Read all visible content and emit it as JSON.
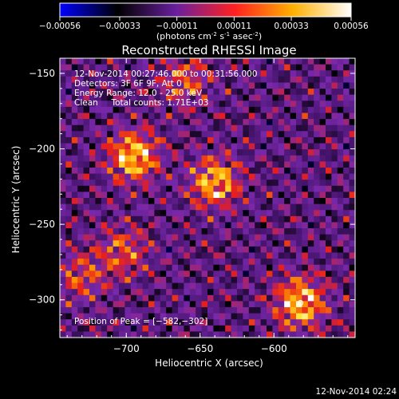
{
  "chart_data": {
    "type": "heatmap",
    "title": "Reconstructed RHESSI Image",
    "colorbar": {
      "ticks": [
        "-0.00056",
        "-0.00033",
        "-0.00011",
        "0.00011",
        "0.00033",
        "0.00056"
      ],
      "label_main": "(photons cm",
      "label_sup1": "-2",
      "label_mid1": " s",
      "label_sup2": "-1",
      "label_mid2": " asec",
      "label_sup3": "-2",
      "label_end": ")",
      "range": [
        -0.00056,
        0.00056
      ],
      "colors": [
        "#0000ff",
        "#000000",
        "#6a1f9e",
        "#ff2020",
        "#ffb000",
        "#ffffff"
      ]
    },
    "xlabel": "Heliocentric X (arcsec)",
    "ylabel": "Heliocentric Y (arcsec)",
    "xlim": [
      -745,
      -545
    ],
    "ylim": [
      -325,
      -140
    ],
    "xticks": [
      {
        "value": -700,
        "label": "−700"
      },
      {
        "value": -650,
        "label": "−650"
      },
      {
        "value": -600,
        "label": "−600"
      }
    ],
    "yticks": [
      {
        "value": -150,
        "label": "−150"
      },
      {
        "value": -200,
        "label": "−200"
      },
      {
        "value": -250,
        "label": "−250"
      },
      {
        "value": -300,
        "label": "−300"
      }
    ],
    "annotations": [
      "12-Nov-2014 00:27:46.000 to 00:31:56.000",
      "Detectors: 3F 6F 9F, Att 0",
      "Energy Range: 12.0 - 25.0 keV",
      "Clean     Total counts: 1.71E+03"
    ],
    "peak_text": "Position of Peak = [−582,−302]",
    "peak": [
      -582,
      -302
    ],
    "bright_sources": [
      {
        "x": -695,
        "y": -205,
        "strength": 1.0
      },
      {
        "x": -640,
        "y": -222,
        "strength": 0.9
      },
      {
        "x": -582,
        "y": -302,
        "strength": 1.0
      },
      {
        "x": -702,
        "y": -268,
        "strength": 0.55
      },
      {
        "x": -730,
        "y": -285,
        "strength": 0.5
      },
      {
        "x": -660,
        "y": -155,
        "strength": 0.55
      }
    ],
    "grid_resolution": [
      50,
      46
    ]
  },
  "footer_timestamp": "12-Nov-2014 02:24"
}
